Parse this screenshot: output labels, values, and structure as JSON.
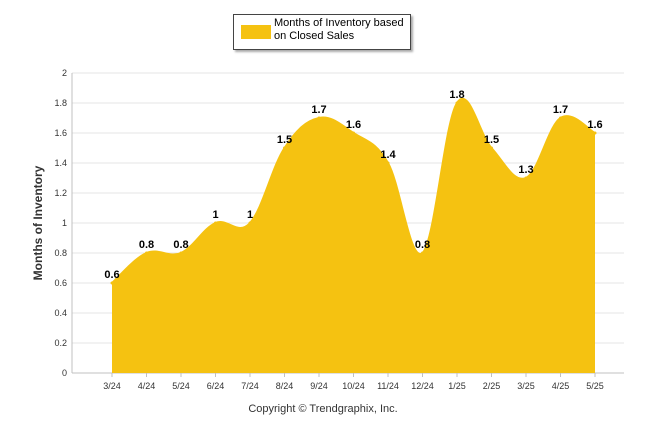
{
  "chart_data": {
    "type": "area",
    "categories": [
      "3/24",
      "4/24",
      "5/24",
      "6/24",
      "7/24",
      "8/24",
      "9/24",
      "10/24",
      "11/24",
      "12/24",
      "1/25",
      "2/25",
      "3/25",
      "4/25",
      "5/25"
    ],
    "series": [
      {
        "name": "Months of Inventory based on Closed Sales",
        "values": [
          0.6,
          0.8,
          0.8,
          1,
          1,
          1.5,
          1.7,
          1.6,
          1.4,
          0.8,
          1.8,
          1.5,
          1.3,
          1.7,
          1.6
        ],
        "color": "#f5c211"
      }
    ],
    "data_labels": [
      "0.6",
      "0.8",
      "0.8",
      "1",
      "1",
      "1.5",
      "1.7",
      "1.6",
      "1.4",
      "0.8",
      "1.8",
      "1.5",
      "1.3",
      "1.7",
      "1.6"
    ],
    "ylabel": "Months of Inventory",
    "xlabel": "",
    "ylim": [
      0,
      2
    ],
    "yticks": [
      "0",
      "0.2",
      "0.4",
      "0.6",
      "0.8",
      "1",
      "1.2",
      "1.4",
      "1.6",
      "1.8",
      "2"
    ],
    "grid": "horizontal",
    "legend": "top-center"
  },
  "legend": {
    "label": "Months of Inventory based on Closed Sales",
    "color": "#f5c211"
  },
  "footer": {
    "copyright": "Copyright © Trendgraphix, Inc."
  }
}
